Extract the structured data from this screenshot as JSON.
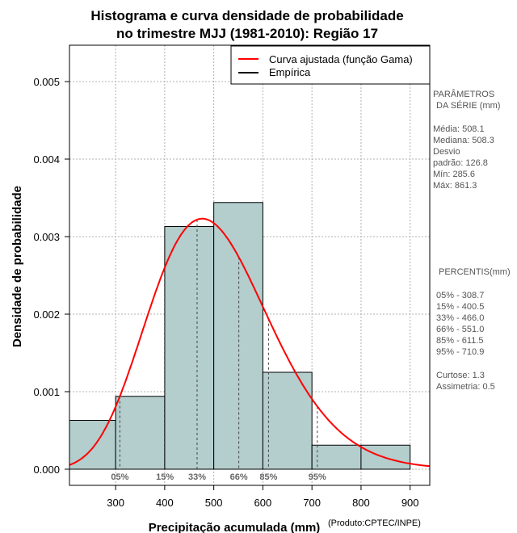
{
  "chart_data": {
    "type": "bar",
    "title_lines": [
      "Histograma e curva densidade de probabilidade",
      "no trimestre MJJ (1981-2010): Região 17"
    ],
    "xlabel": "Precipitação acumulada (mm)",
    "ylabel": "Densidade de probabilidade",
    "credit": "(Produto:CPTEC/INPE)",
    "xlim": [
      206,
      940
    ],
    "ylim": [
      0,
      0.00545
    ],
    "x_ticks": [
      300,
      400,
      500,
      600,
      700,
      800,
      900
    ],
    "x_tick_labels": [
      "300",
      "400",
      "500",
      "600",
      "700",
      "800",
      "900"
    ],
    "y_ticks": [
      0,
      0.001,
      0.002,
      0.003,
      0.004,
      0.005
    ],
    "y_tick_labels": [
      "0.000",
      "0.001",
      "0.002",
      "0.003",
      "0.004",
      "0.005"
    ],
    "bins": [
      {
        "x0": 200,
        "x1": 300,
        "value": 0.00063
      },
      {
        "x0": 300,
        "x1": 400,
        "value": 0.00094
      },
      {
        "x0": 400,
        "x1": 500,
        "value": 0.00313
      },
      {
        "x0": 500,
        "x1": 600,
        "value": 0.00344
      },
      {
        "x0": 600,
        "x1": 700,
        "value": 0.00125
      },
      {
        "x0": 700,
        "x1": 800,
        "value": 0.00031
      },
      {
        "x0": 800,
        "x1": 900,
        "value": 0.00031
      }
    ],
    "gamma_fit": {
      "mean": 508.1,
      "sd": 126.8
    },
    "percentiles": [
      {
        "label": "05%",
        "value": 308.7
      },
      {
        "label": "15%",
        "value": 400.5
      },
      {
        "label": "33%",
        "value": 466.0
      },
      {
        "label": "66%",
        "value": 551.0
      },
      {
        "label": "85%",
        "value": 611.5
      },
      {
        "label": "95%",
        "value": 710.9
      }
    ],
    "legend": [
      {
        "label": "Curva ajustada (função Gama)",
        "color": "#ff0000"
      },
      {
        "label": "Empírica",
        "color": "#000000"
      }
    ],
    "colors": {
      "bar_fill": "#b4cdcd",
      "curve": "#ff0000",
      "grid": "#b0b0b0"
    }
  },
  "sidebar": {
    "params_title_1": "PARÂMETROS",
    "params_title_2": "DA SÉRIE (mm)",
    "params": [
      "Média:  508.1",
      "Mediana:  508.3",
      "Desvio",
      "padrão:  126.8",
      "Mín:  285.6",
      "Máx:  861.3"
    ],
    "percentis_title": "PERCENTIS(mm)",
    "percentis": [
      "05% -  308.7",
      "15% -  400.5",
      "33% -  466.0",
      "66% -  551.0",
      "85% -  611.5",
      "95% -  710.9"
    ],
    "stats": [
      "Curtose:  1.3",
      "Assimetria:  0.5"
    ]
  }
}
